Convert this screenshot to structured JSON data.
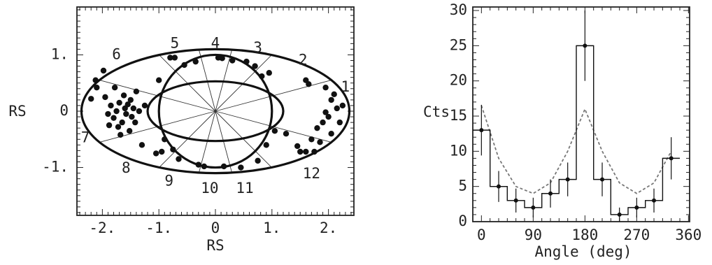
{
  "chart_data": [
    {
      "type": "scatter",
      "xlabel": "RS",
      "ylabel": "RS",
      "xlim": [
        -2.45,
        2.45
      ],
      "ylim": [
        -1.85,
        1.85
      ],
      "x_ticks": [
        {
          "value": -2,
          "label": "-2."
        },
        {
          "value": -1,
          "label": "-1."
        },
        {
          "value": 0,
          "label": "0"
        },
        {
          "value": 1,
          "label": "1."
        },
        {
          "value": 2,
          "label": "2."
        }
      ],
      "y_ticks": [
        {
          "value": 1,
          "label": "1."
        },
        {
          "value": 0,
          "label": "0"
        },
        {
          "value": -1,
          "label": "-1."
        }
      ],
      "outer_ellipse": {
        "a": 2.37,
        "b": 1.1
      },
      "middle_ellipse": {
        "a": 1.2,
        "b": 0.53
      },
      "circle": {
        "r": 1.0
      },
      "spokes": {
        "count": 12,
        "inner_r": 0.0,
        "outer_r": 2.37
      },
      "sector_labels": [
        {
          "label": "1",
          "x": 2.3,
          "y": 0.42
        },
        {
          "label": "2",
          "x": 1.55,
          "y": 0.9
        },
        {
          "label": "3",
          "x": 0.75,
          "y": 1.12
        },
        {
          "label": "4",
          "x": 0.0,
          "y": 1.2
        },
        {
          "label": "5",
          "x": -0.72,
          "y": 1.2
        },
        {
          "label": "6",
          "x": -1.75,
          "y": 1.0
        },
        {
          "label": "7",
          "x": -2.3,
          "y": -0.48
        },
        {
          "label": "8",
          "x": -1.58,
          "y": -1.02
        },
        {
          "label": "9",
          "x": -0.82,
          "y": -1.25
        },
        {
          "label": "10",
          "x": -0.1,
          "y": -1.38
        },
        {
          "label": "11",
          "x": 0.52,
          "y": -1.38
        },
        {
          "label": "12",
          "x": 1.7,
          "y": -1.12
        }
      ],
      "points": [
        [
          -2.2,
          0.22
        ],
        [
          -2.12,
          0.55
        ],
        [
          -1.98,
          0.72
        ],
        [
          -1.95,
          0.25
        ],
        [
          -1.9,
          -0.05
        ],
        [
          -1.85,
          0.1
        ],
        [
          -1.8,
          -0.12
        ],
        [
          -1.78,
          0.42
        ],
        [
          -1.75,
          0.0
        ],
        [
          -1.72,
          -0.28
        ],
        [
          -1.7,
          0.15
        ],
        [
          -1.68,
          -0.42
        ],
        [
          -1.65,
          -0.2
        ],
        [
          -1.62,
          0.28
        ],
        [
          -1.6,
          0.05
        ],
        [
          -1.58,
          -0.05
        ],
        [
          -1.55,
          0.12
        ],
        [
          -1.52,
          -0.35
        ],
        [
          -1.5,
          0.2
        ],
        [
          -1.48,
          -0.1
        ],
        [
          -1.45,
          0.05
        ],
        [
          -1.42,
          -0.2
        ],
        [
          -1.4,
          0.35
        ],
        [
          -1.35,
          0.0
        ],
        [
          -1.3,
          -0.6
        ],
        [
          -1.25,
          0.1
        ],
        [
          -2.1,
          0.42
        ],
        [
          -1.88,
          -0.25
        ],
        [
          -1.0,
          0.55
        ],
        [
          -0.9,
          -0.5
        ],
        [
          -1.05,
          -0.75
        ],
        [
          -0.95,
          -0.72
        ],
        [
          -0.75,
          -0.68
        ],
        [
          -0.65,
          -0.85
        ],
        [
          -0.72,
          0.95
        ],
        [
          -0.8,
          0.95
        ],
        [
          -0.55,
          0.82
        ],
        [
          -0.35,
          0.88
        ],
        [
          0.15,
          -0.98
        ],
        [
          0.05,
          0.95
        ],
        [
          0.12,
          0.94
        ],
        [
          0.3,
          0.9
        ],
        [
          0.55,
          0.88
        ],
        [
          0.7,
          0.8
        ],
        [
          0.95,
          0.68
        ],
        [
          0.82,
          0.62
        ],
        [
          -0.3,
          -0.95
        ],
        [
          -0.2,
          -0.98
        ],
        [
          0.45,
          -1.0
        ],
        [
          0.75,
          -0.88
        ],
        [
          0.9,
          -0.6
        ],
        [
          1.05,
          -0.35
        ],
        [
          1.25,
          -0.4
        ],
        [
          1.45,
          -0.62
        ],
        [
          1.5,
          -0.72
        ],
        [
          1.6,
          -0.72
        ],
        [
          1.7,
          -0.5
        ],
        [
          1.75,
          -0.72
        ],
        [
          1.8,
          -0.3
        ],
        [
          1.9,
          -0.2
        ],
        [
          2.0,
          -0.1
        ],
        [
          2.05,
          0.2
        ],
        [
          2.1,
          0.3
        ],
        [
          2.15,
          0.05
        ],
        [
          1.95,
          0.42
        ],
        [
          2.25,
          0.1
        ],
        [
          1.85,
          -0.55
        ],
        [
          2.05,
          -0.4
        ],
        [
          1.6,
          0.55
        ],
        [
          1.65,
          0.48
        ],
        [
          2.2,
          -0.2
        ],
        [
          1.95,
          -0.02
        ]
      ]
    },
    {
      "type": "line",
      "xlabel": "Angle (deg)",
      "ylabel": "Cts",
      "xlim": [
        -15,
        362
      ],
      "ylim": [
        0,
        30.5
      ],
      "x_ticks": [
        {
          "value": 0,
          "label": "0"
        },
        {
          "value": 90,
          "label": "90"
        },
        {
          "value": 180,
          "label": "180"
        },
        {
          "value": 270,
          "label": "270"
        },
        {
          "value": 360,
          "label": "360"
        }
      ],
      "y_ticks": [
        {
          "value": 0,
          "label": "0"
        },
        {
          "value": 5,
          "label": "5"
        },
        {
          "value": 10,
          "label": "10"
        },
        {
          "value": 15,
          "label": "15"
        },
        {
          "value": 20,
          "label": "20"
        },
        {
          "value": 25,
          "label": "25"
        },
        {
          "value": 30,
          "label": "30"
        }
      ],
      "histogram": {
        "bin_edges": [
          -15,
          15,
          45,
          75,
          105,
          135,
          165,
          195,
          225,
          255,
          285,
          315,
          345
        ],
        "counts": [
          13,
          5,
          3,
          2,
          4,
          6,
          25,
          6,
          1,
          2,
          3,
          9
        ]
      },
      "data_points": {
        "x": [
          0,
          30,
          60,
          90,
          120,
          150,
          180,
          210,
          240,
          270,
          300,
          330
        ],
        "y": [
          13,
          5,
          3,
          2,
          4,
          6,
          25,
          6,
          1,
          2,
          3,
          9
        ],
        "err": [
          3.6,
          2.2,
          1.7,
          1.4,
          2.0,
          2.4,
          5.0,
          2.4,
          1.0,
          1.4,
          1.7,
          3.0
        ],
        "xerr": 15
      },
      "model_dashed": {
        "x": [
          0,
          30,
          60,
          90,
          120,
          150,
          180,
          210,
          240,
          270,
          300,
          330
        ],
        "y": [
          16.5,
          9,
          5,
          4,
          5.5,
          10,
          16,
          10,
          5.5,
          4,
          5.5,
          10
        ]
      }
    }
  ]
}
